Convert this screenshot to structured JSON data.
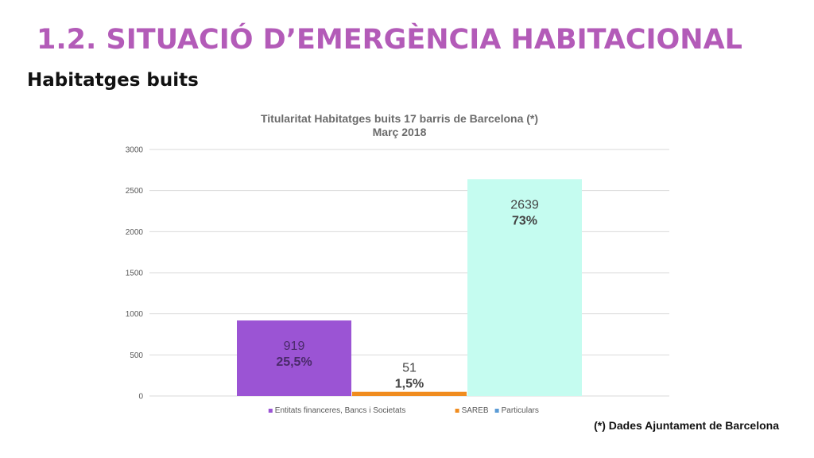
{
  "slide": {
    "title": "1.2. SITUACIÓ D’EMERGÈNCIA HABITACIONAL",
    "subtitle": "Habitatges buits",
    "footnote": "(*) Dades Ajuntament de Barcelona"
  },
  "chart_data": {
    "type": "bar",
    "title": "Titularitat Habitatges buits 17 barris de Barcelona (*)",
    "subtitle": "Març 2018",
    "xlabel": "",
    "ylabel": "",
    "ylim": [
      0,
      3000
    ],
    "yticks": [
      0,
      500,
      1000,
      1500,
      2000,
      2500,
      3000
    ],
    "grid": true,
    "legend_position": "bottom",
    "series": [
      {
        "name": "Entitats financeres, Bancs i Societats",
        "value": 919,
        "label": "919",
        "percent_label": "25,5%",
        "color": "#9b54d4",
        "label_color": "#4a2a6a"
      },
      {
        "name": "SAREB",
        "value": 51,
        "label": "51",
        "percent_label": "1,5%",
        "color": "#f08c1f",
        "label_color": "#444444"
      },
      {
        "name": "Particulars",
        "value": 2639,
        "label": "2639",
        "percent_label": "73%",
        "color": "#c5fcf0",
        "label_color": "#444444"
      }
    ]
  }
}
